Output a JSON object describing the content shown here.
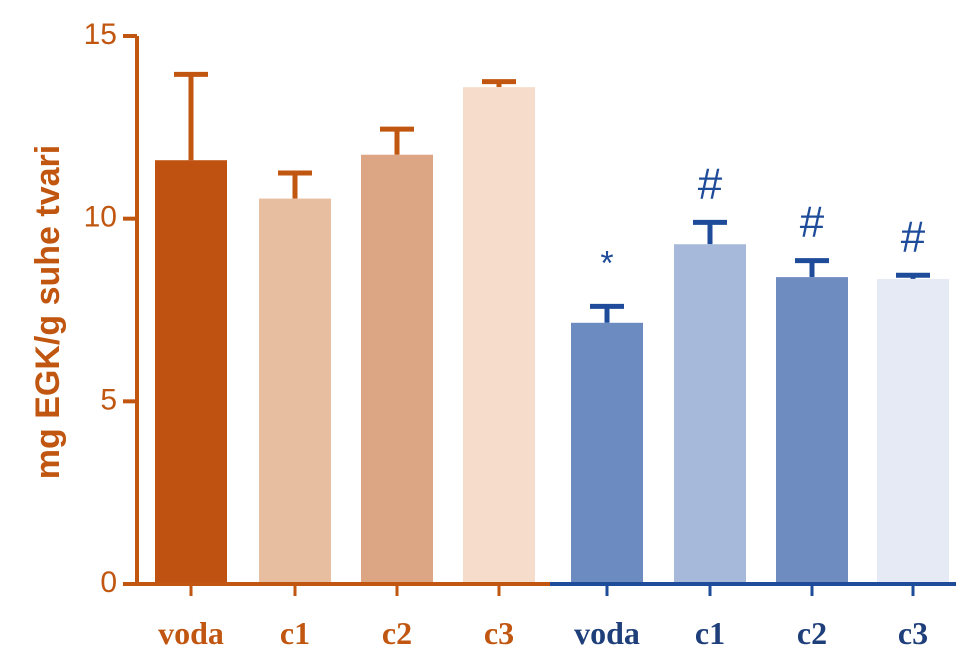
{
  "chart_data": {
    "type": "bar",
    "ylabel": "mg EGK/g  suhe tvari",
    "ylim": [
      0,
      15
    ],
    "yticks": [
      "0",
      "5",
      "10",
      "15"
    ],
    "grid": false,
    "categories": [
      "voda",
      "c1",
      "c2",
      "c3",
      "voda",
      "c1",
      "c2",
      "c3"
    ],
    "values": [
      11.6,
      10.55,
      11.75,
      13.6,
      7.15,
      9.3,
      8.4,
      8.35
    ],
    "error_upper": [
      13.95,
      11.25,
      12.45,
      13.75,
      7.6,
      9.9,
      8.85,
      8.45
    ],
    "annotations": [
      "",
      "",
      "",
      "",
      "*",
      "#",
      "#",
      "#"
    ],
    "colors": [
      "#bf5210",
      "#e8bea0",
      "#dca584",
      "#f6ddcb",
      "#6c8bc0",
      "#a7b9da",
      "#6f8cc0",
      "#e5eaf5"
    ],
    "group_colors": {
      "orange": "#c0560f",
      "blue": "#1f4c9a"
    },
    "label_colors": [
      "#c0560f",
      "#c0560f",
      "#c0560f",
      "#c0560f",
      "#1f3f7a",
      "#1f3f7a",
      "#1f3f7a",
      "#1f3f7a"
    ]
  }
}
